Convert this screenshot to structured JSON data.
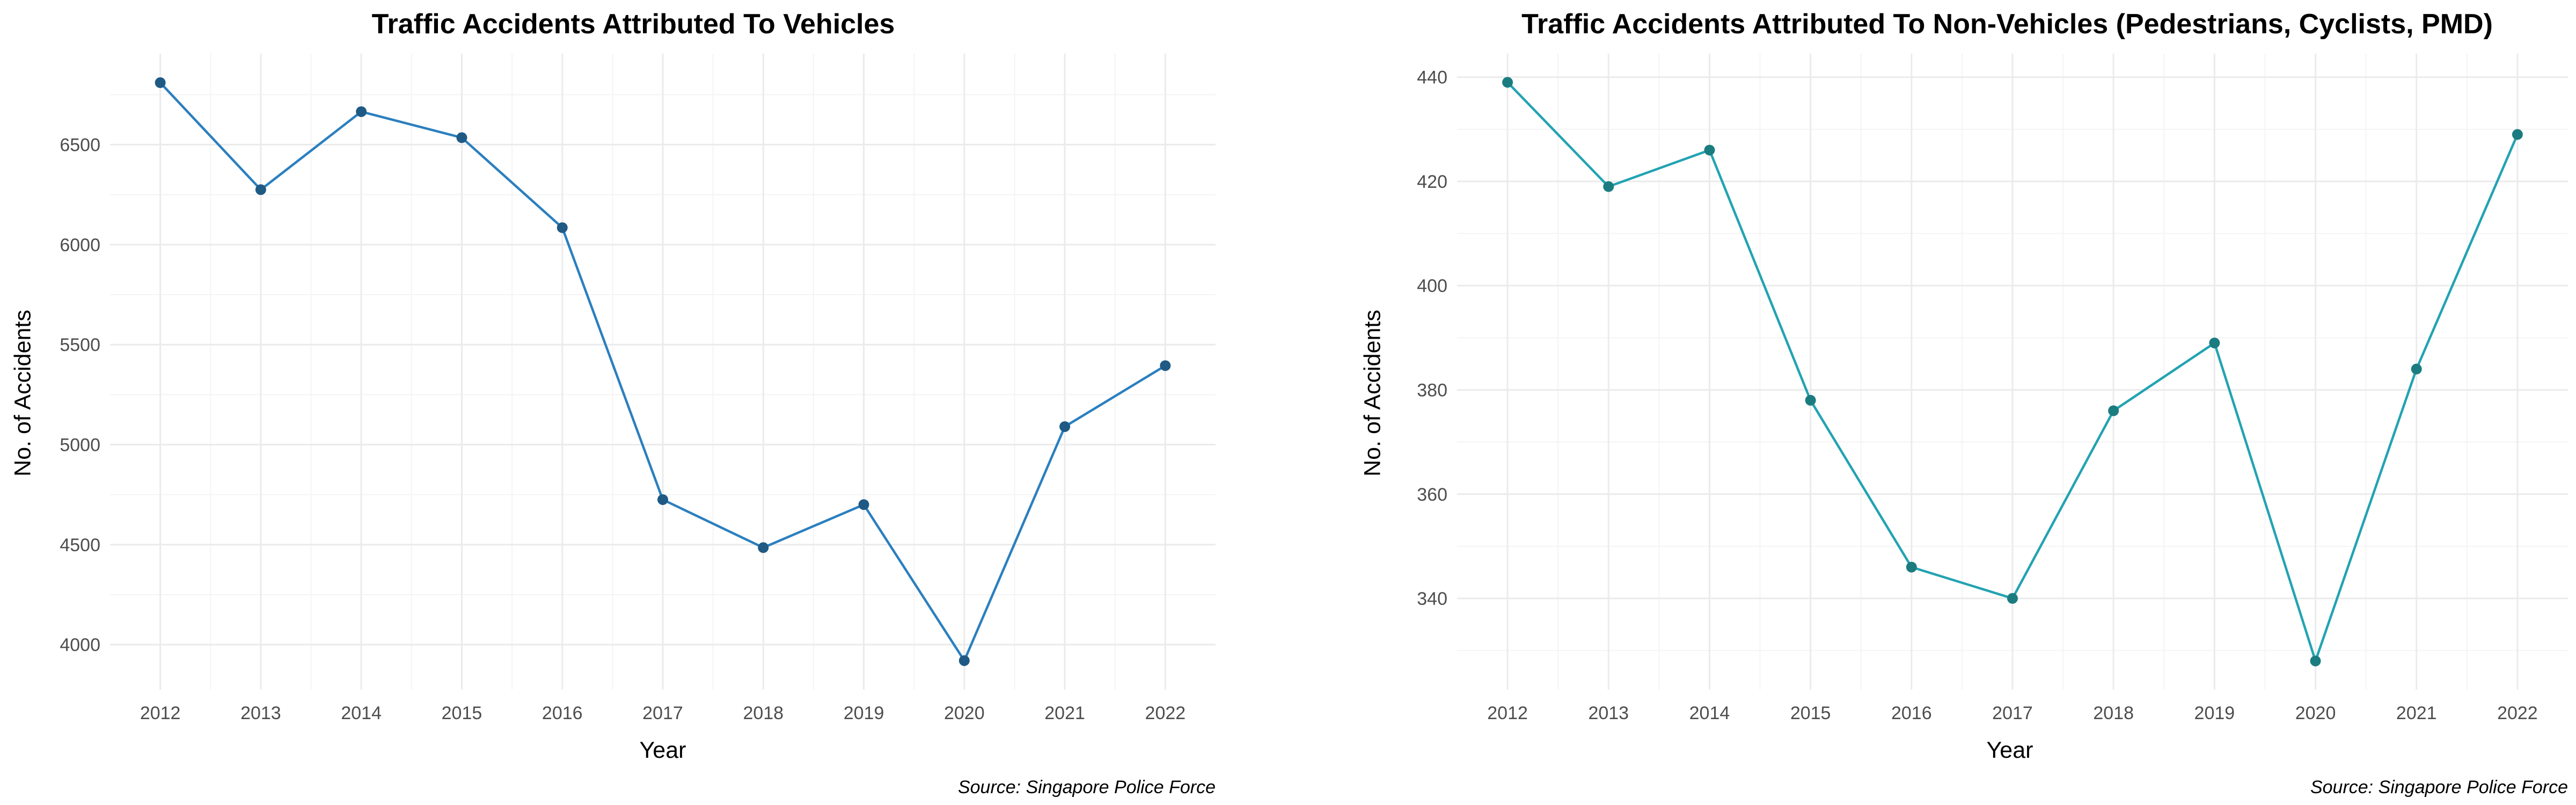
{
  "chart_data": [
    {
      "type": "line",
      "title": "Traffic Accidents Attributed To Vehicles",
      "xlabel": "Year",
      "ylabel": "No. of Accidents",
      "caption": "Source: Singapore Police Force",
      "x": [
        2012,
        2013,
        2014,
        2015,
        2016,
        2017,
        2018,
        2019,
        2020,
        2021,
        2022
      ],
      "series": [
        {
          "values": [
            6810,
            6275,
            6665,
            6535,
            6085,
            4725,
            4485,
            4700,
            3920,
            5090,
            5395
          ]
        }
      ],
      "ylim": [
        3775,
        6955
      ],
      "yticks": [
        4000,
        4500,
        5000,
        5500,
        6000,
        6500
      ],
      "grid": true,
      "line_color": "#2B7FBF",
      "point_color": "#1F5A85"
    },
    {
      "type": "line",
      "title": "Traffic Accidents Attributed To Non-Vehicles (Pedestrians, Cyclists, PMD)",
      "xlabel": "Year",
      "ylabel": "No. of Accidents",
      "caption": "Source: Singapore Police Force",
      "x": [
        2012,
        2013,
        2014,
        2015,
        2016,
        2017,
        2018,
        2019,
        2020,
        2021,
        2022
      ],
      "series": [
        {
          "values": [
            439,
            419,
            426,
            378,
            346,
            340,
            376,
            389,
            328,
            384,
            429
          ]
        }
      ],
      "ylim": [
        322.5,
        444.5
      ],
      "yticks": [
        340,
        360,
        380,
        400,
        420,
        440
      ],
      "grid": true,
      "line_color": "#22A3B2",
      "point_color": "#1B7C80"
    }
  ]
}
